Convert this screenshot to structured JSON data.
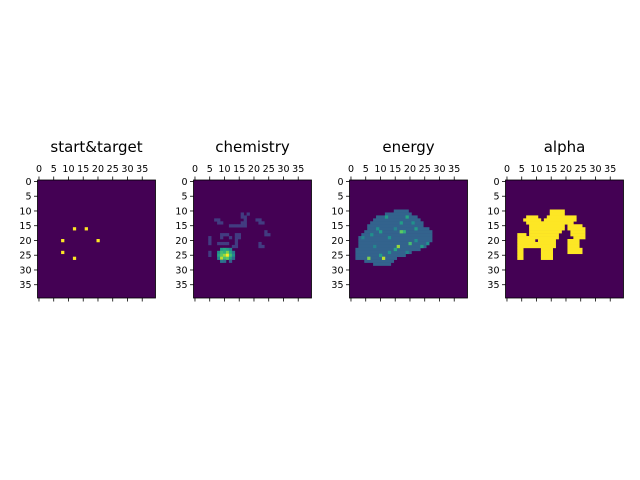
{
  "chart_data": [
    {
      "type": "heatmap",
      "title": "start&target",
      "colormap": "viridis",
      "size": [
        40,
        40
      ],
      "background": 0,
      "vmin": 0,
      "vmax": 1,
      "xticks": [
        0,
        5,
        10,
        15,
        20,
        25,
        30,
        35
      ],
      "yticks": [
        0,
        5,
        10,
        15,
        20,
        25,
        30,
        35
      ],
      "cells": [
        [
          12,
          16,
          1
        ],
        [
          16,
          16,
          1
        ],
        [
          8,
          20,
          1
        ],
        [
          20,
          20,
          1
        ],
        [
          8,
          24,
          1
        ],
        [
          12,
          26,
          1
        ]
      ]
    },
    {
      "type": "heatmap",
      "title": "chemistry",
      "colormap": "viridis",
      "size": [
        40,
        40
      ],
      "background": 0,
      "vmin": 0,
      "vmax": 1,
      "xticks": [
        0,
        5,
        10,
        15,
        20,
        25,
        30,
        35
      ],
      "yticks": [
        0,
        5,
        10,
        15,
        20,
        25,
        30,
        35
      ],
      "cells": [
        [
          7,
          13,
          0.18
        ],
        [
          8,
          13,
          0.18
        ],
        [
          8,
          14,
          0.18
        ],
        [
          9,
          14,
          0.18
        ],
        [
          16,
          11,
          0.18
        ],
        [
          16,
          12,
          0.18
        ],
        [
          17,
          12,
          0.18
        ],
        [
          18,
          11,
          0.18
        ],
        [
          17,
          13,
          0.18
        ],
        [
          16,
          14,
          0.18
        ],
        [
          17,
          14,
          0.18
        ],
        [
          12,
          15,
          0.18
        ],
        [
          13,
          15,
          0.18
        ],
        [
          14,
          15,
          0.18
        ],
        [
          15,
          15,
          0.18
        ],
        [
          16,
          15,
          0.18
        ],
        [
          17,
          15,
          0.18
        ],
        [
          21,
          13,
          0.18
        ],
        [
          22,
          13,
          0.18
        ],
        [
          22,
          14,
          0.18
        ],
        [
          23,
          14,
          0.18
        ],
        [
          24,
          17,
          0.18
        ],
        [
          24,
          18,
          0.18
        ],
        [
          25,
          18,
          0.18
        ],
        [
          5,
          19,
          0.18
        ],
        [
          5,
          20,
          0.18
        ],
        [
          5,
          21,
          0.18
        ],
        [
          5,
          24,
          0.18
        ],
        [
          5,
          25,
          0.18
        ],
        [
          9,
          18,
          0.18
        ],
        [
          10,
          18,
          0.18
        ],
        [
          11,
          18,
          0.18
        ],
        [
          9,
          19,
          0.18
        ],
        [
          12,
          19,
          0.18
        ],
        [
          8,
          21,
          0.18
        ],
        [
          9,
          21,
          0.18
        ],
        [
          10,
          21,
          0.18
        ],
        [
          11,
          21,
          0.18
        ],
        [
          14,
          18,
          0.18
        ],
        [
          14,
          19,
          0.18
        ],
        [
          15,
          18,
          0.18
        ],
        [
          15,
          19,
          0.18
        ],
        [
          14,
          20,
          0.18
        ],
        [
          14,
          21,
          0.18
        ],
        [
          14,
          22,
          0.18
        ],
        [
          13,
          22,
          0.18
        ],
        [
          22,
          21,
          0.18
        ],
        [
          22,
          22,
          0.18
        ],
        [
          23,
          22,
          0.18
        ],
        [
          9,
          23,
          0.55
        ],
        [
          10,
          23,
          0.6
        ],
        [
          11,
          23,
          0.55
        ],
        [
          12,
          23,
          0.45
        ],
        [
          8,
          24,
          0.5
        ],
        [
          9,
          24,
          0.7
        ],
        [
          10,
          24,
          0.65
        ],
        [
          11,
          24,
          0.8
        ],
        [
          12,
          24,
          0.6
        ],
        [
          13,
          24,
          0.4
        ],
        [
          8,
          25,
          0.6
        ],
        [
          9,
          25,
          0.75
        ],
        [
          10,
          25,
          0.85
        ],
        [
          11,
          25,
          1.0
        ],
        [
          12,
          25,
          0.7
        ],
        [
          13,
          25,
          0.5
        ],
        [
          8,
          26,
          0.45
        ],
        [
          9,
          26,
          0.9
        ],
        [
          10,
          26,
          0.7
        ],
        [
          11,
          26,
          0.75
        ],
        [
          12,
          26,
          0.55
        ],
        [
          13,
          26,
          0.35
        ],
        [
          9,
          27,
          0.4
        ],
        [
          10,
          27,
          0.35
        ],
        [
          12,
          27,
          0.3
        ]
      ]
    },
    {
      "type": "heatmap",
      "title": "energy",
      "colormap": "viridis",
      "size": [
        40,
        40
      ],
      "background": 0,
      "vmin": 0,
      "vmax": 1,
      "xticks": [
        0,
        5,
        10,
        15,
        20,
        25,
        30,
        35
      ],
      "yticks": [
        0,
        5,
        10,
        15,
        20,
        25,
        30,
        35
      ],
      "rows": [
        [
          10,
          15,
          19
        ],
        [
          11,
          12,
          20
        ],
        [
          12,
          9,
          22
        ],
        [
          13,
          8,
          23
        ],
        [
          14,
          7,
          24
        ],
        [
          15,
          6,
          24
        ],
        [
          16,
          6,
          26
        ],
        [
          17,
          5,
          27
        ],
        [
          18,
          4,
          27
        ],
        [
          19,
          3,
          27
        ],
        [
          20,
          3,
          27
        ],
        [
          21,
          3,
          26
        ],
        [
          22,
          3,
          25
        ],
        [
          23,
          2,
          23
        ],
        [
          24,
          2,
          20
        ],
        [
          25,
          2,
          18
        ],
        [
          26,
          2,
          15
        ],
        [
          27,
          5,
          14
        ],
        [
          28,
          8,
          13
        ]
      ],
      "fill_value": 0.32,
      "cells": [
        [
          12,
          12,
          0.55
        ],
        [
          19,
          12,
          0.6
        ],
        [
          22,
          16,
          0.55
        ],
        [
          18,
          17,
          0.65
        ],
        [
          17,
          17,
          0.75
        ],
        [
          9,
          16,
          0.5
        ],
        [
          15,
          16,
          0.45
        ],
        [
          10,
          17,
          0.55
        ],
        [
          7,
          18,
          0.5
        ],
        [
          16,
          22,
          0.85
        ],
        [
          20,
          21,
          0.7
        ],
        [
          24,
          22,
          0.55
        ],
        [
          26,
          21,
          0.5
        ],
        [
          15,
          23,
          0.6
        ],
        [
          10,
          25,
          0.55
        ],
        [
          6,
          26,
          0.8
        ],
        [
          11,
          26,
          0.9
        ],
        [
          13,
          24,
          0.5
        ],
        [
          19,
          24,
          0.45
        ],
        [
          22,
          20,
          0.5
        ],
        [
          4,
          19,
          0.45
        ],
        [
          13,
          19,
          0.5
        ],
        [
          17,
          14,
          0.55
        ],
        [
          8,
          22,
          0.45
        ],
        [
          21,
          14,
          0.5
        ]
      ]
    },
    {
      "type": "heatmap",
      "title": "alpha",
      "colormap": "viridis",
      "size": [
        40,
        40
      ],
      "background": 0,
      "vmin": 0,
      "vmax": 1,
      "xticks": [
        0,
        5,
        10,
        15,
        20,
        25,
        30,
        35
      ],
      "yticks": [
        0,
        5,
        10,
        15,
        20,
        25,
        30,
        35
      ],
      "rows": [
        [
          10,
          15,
          19
        ],
        [
          11,
          15,
          19
        ],
        [
          12,
          7,
          10
        ],
        [
          12,
          14,
          23
        ],
        [
          13,
          6,
          11
        ],
        [
          13,
          13,
          23
        ],
        [
          14,
          7,
          12
        ],
        [
          14,
          13,
          22
        ],
        [
          15,
          8,
          19
        ],
        [
          15,
          21,
          25
        ],
        [
          16,
          8,
          19
        ],
        [
          16,
          21,
          26
        ],
        [
          17,
          8,
          18
        ],
        [
          17,
          22,
          26
        ],
        [
          18,
          4,
          6
        ],
        [
          18,
          8,
          17
        ],
        [
          18,
          22,
          26
        ],
        [
          19,
          4,
          17
        ],
        [
          19,
          23,
          26
        ],
        [
          20,
          4,
          9
        ],
        [
          20,
          11,
          16
        ],
        [
          20,
          21,
          24
        ],
        [
          21,
          4,
          16
        ],
        [
          21,
          21,
          24
        ],
        [
          22,
          4,
          16
        ],
        [
          22,
          21,
          24
        ],
        [
          23,
          4,
          5
        ],
        [
          23,
          12,
          15
        ],
        [
          23,
          21,
          25
        ],
        [
          24,
          4,
          5
        ],
        [
          24,
          12,
          15
        ],
        [
          24,
          21,
          25
        ],
        [
          25,
          4,
          5
        ],
        [
          25,
          12,
          15
        ],
        [
          26,
          4,
          5
        ],
        [
          26,
          12,
          15
        ]
      ],
      "fill_value": 1.0,
      "cells": []
    }
  ]
}
